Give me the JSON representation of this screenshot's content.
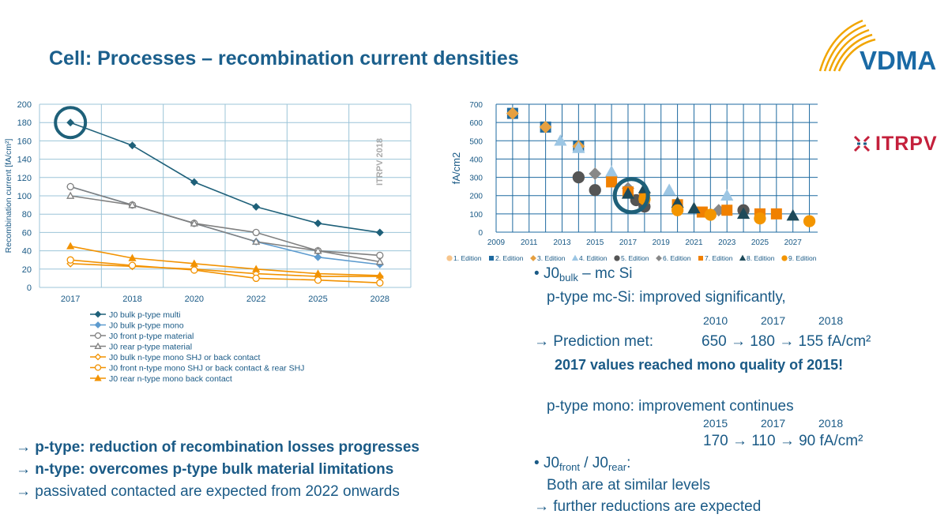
{
  "title": "Cell: Processes – recombination current densities",
  "logos": {
    "vdma": "VDMA",
    "itrpv": "ITRPV"
  },
  "chart_data": [
    {
      "type": "line",
      "categories": [
        "2017",
        "2018",
        "2020",
        "2022",
        "2025",
        "2028"
      ],
      "ylabel": "Recombination current [fA/cm²]",
      "ylim": [
        0,
        200
      ],
      "yticks": [
        "0",
        "20",
        "40",
        "60",
        "80",
        "100",
        "120",
        "140",
        "160",
        "180",
        "200"
      ],
      "watermark": "ITRPV 2018",
      "grid": true,
      "legend_position": "bottom",
      "series": [
        {
          "name": "J0 bulk p-type multi",
          "color": "#1e6079",
          "marker": "diamond",
          "values": [
            180,
            155,
            115,
            88,
            70,
            60
          ]
        },
        {
          "name": "J0 bulk p-type mono",
          "color": "#5d9bcf",
          "marker": "diamond",
          "values": [
            110,
            90,
            70,
            50,
            33,
            25
          ]
        },
        {
          "name": "J0 front p-type material",
          "color": "#808080",
          "marker": "circle-open",
          "values": [
            110,
            90,
            70,
            60,
            40,
            35
          ]
        },
        {
          "name": "J0 rear p-type material",
          "color": "#808080",
          "marker": "triangle-open",
          "values": [
            100,
            90,
            70,
            50,
            40,
            28
          ]
        },
        {
          "name": "J0 bulk n-type mono SHJ or back contact",
          "color": "#f29200",
          "marker": "diamond-open",
          "values": [
            26,
            23,
            20,
            15,
            12,
            12
          ]
        },
        {
          "name": "J0 front n-type mono SHJ or back contact & rear SHJ",
          "color": "#f29200",
          "marker": "circle-open",
          "values": [
            30,
            24,
            19,
            10,
            8,
            5
          ]
        },
        {
          "name": "J0 rear n-type mono back contact",
          "color": "#f29200",
          "marker": "triangle",
          "values": [
            45,
            32,
            26,
            20,
            15,
            13
          ]
        }
      ]
    },
    {
      "type": "scatter",
      "ylabel": "fA/cm2",
      "xlim": [
        2009,
        2028.5
      ],
      "ylim": [
        0,
        700
      ],
      "xticks": [
        "2009",
        "2011",
        "2013",
        "2015",
        "2017",
        "2019",
        "2021",
        "2023",
        "2025",
        "2027"
      ],
      "yticks": [
        "0",
        "100",
        "200",
        "300",
        "400",
        "500",
        "600",
        "700"
      ],
      "grid": true,
      "legend_position": "bottom",
      "series": [
        {
          "name": "1. Edition",
          "color": "#f7c58c",
          "marker": "circle",
          "points": []
        },
        {
          "name": "2. Edition",
          "color": "#1e6aa0",
          "marker": "square",
          "points": [
            [
              2010,
              650
            ],
            [
              2012,
              575
            ],
            [
              2014,
              470
            ]
          ]
        },
        {
          "name": "3. Edition",
          "color": "#e6a040",
          "marker": "diamond",
          "points": [
            [
              2010,
              650
            ],
            [
              2012,
              575
            ],
            [
              2014,
              470
            ]
          ]
        },
        {
          "name": "4. Edition",
          "color": "#9cc6e4",
          "marker": "triangle",
          "points": [
            [
              2012.9,
              500
            ],
            [
              2014,
              460
            ],
            [
              2016,
              330
            ],
            [
              2019.5,
              230
            ],
            [
              2023,
              200
            ]
          ]
        },
        {
          "name": "5. Edition",
          "color": "#555555",
          "marker": "circle",
          "points": [
            [
              2014,
              300
            ],
            [
              2015,
              230
            ],
            [
              2017.5,
              175
            ],
            [
              2018,
              140
            ],
            [
              2024,
              120
            ]
          ]
        },
        {
          "name": "6. Edition",
          "color": "#888888",
          "marker": "diamond",
          "points": [
            [
              2015,
              320
            ],
            [
              2017,
              240
            ],
            [
              2022.5,
              120
            ],
            [
              2025,
              100
            ]
          ]
        },
        {
          "name": "7. Edition",
          "color": "#f08000",
          "marker": "square",
          "points": [
            [
              2016,
              275
            ],
            [
              2017,
              220
            ],
            [
              2018,
              190
            ],
            [
              2020,
              150
            ],
            [
              2021.5,
              110
            ],
            [
              2023,
              120
            ],
            [
              2025,
              100
            ],
            [
              2026,
              100
            ]
          ]
        },
        {
          "name": "8. Edition",
          "color": "#1e4a5a",
          "marker": "triangle",
          "points": [
            [
              2017,
              210
            ],
            [
              2018,
              240
            ],
            [
              2020,
              160
            ],
            [
              2021,
              130
            ],
            [
              2024,
              100
            ],
            [
              2027,
              90
            ]
          ]
        },
        {
          "name": "9. Edition",
          "color": "#f39500",
          "marker": "circle",
          "points": [
            [
              2018,
              180
            ],
            [
              2020,
              120
            ],
            [
              2022,
              95
            ],
            [
              2025,
              75
            ],
            [
              2028,
              60
            ]
          ]
        }
      ]
    }
  ],
  "right_text": {
    "bullet1_main": "J0",
    "bullet1_sub": "bulk",
    "bullet1_rest": " – mc Si",
    "line_mc": "p-type mc-Si: improved significantly,",
    "years1": [
      "2010",
      "2017",
      "2018"
    ],
    "prediction_label": "→ Prediction met:",
    "prediction_values": "650 → 180 → 155 fA/cm²",
    "bold_line": "2017 values reached mono quality of 2015!",
    "line_mono": "p-type mono: improvement continues",
    "years2": [
      "2015",
      "2017",
      "2018"
    ],
    "mono_values": "170 → 110 → 90  fA/cm²",
    "front_main": "J0",
    "front_sub": "front",
    "front_mid": " / J0",
    "rear_sub": "rear",
    "front_end": ":",
    "similar": "Both are at similar levels",
    "further": "→ further reductions are expected"
  },
  "left_text": {
    "l1": "→ p-type:  reduction of recombination losses progresses",
    "l2": "→ n-type: overcomes p-type bulk material limitations",
    "l3": "→ passivated contacted are expected from 2022 onwards"
  }
}
